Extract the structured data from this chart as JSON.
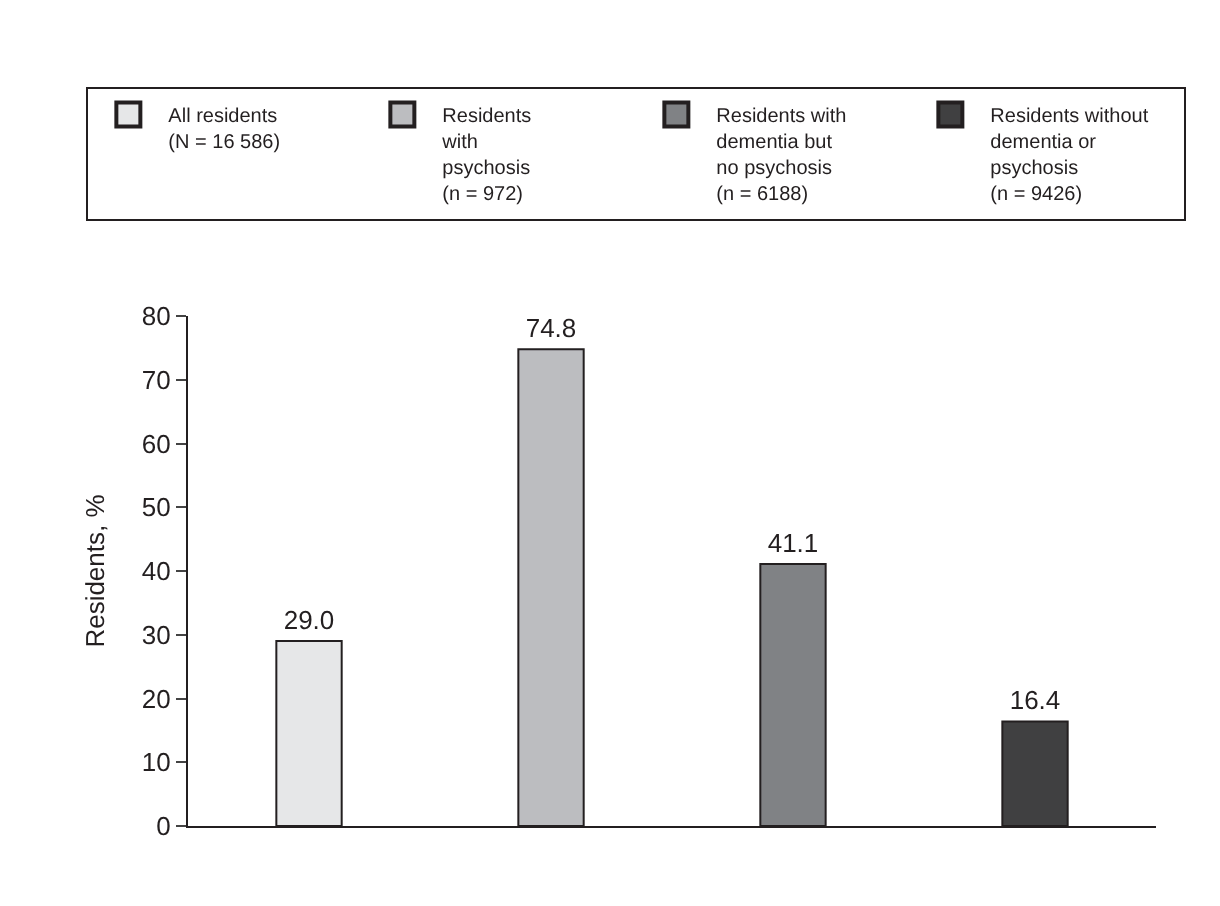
{
  "chart_data": {
    "type": "bar",
    "ylabel": "Residents, %",
    "categories": [
      null,
      null,
      null,
      null
    ],
    "series": [
      {
        "name": "All residents\n(N = 16 586)",
        "color": "#e6e7e8",
        "values": [
          29.0,
          null,
          null,
          null
        ],
        "value_labels": [
          "29.0",
          null,
          null,
          null
        ]
      },
      {
        "name": "Residents\nwith\npsychosis\n(n = 972)",
        "color": "#bcbdc0",
        "values": [
          null,
          74.8,
          null,
          null
        ],
        "value_labels": [
          null,
          "74.8",
          null,
          null
        ]
      },
      {
        "name": "Residents with\ndementia but\nno psychosis\n(n = 6188)",
        "color": "#808285",
        "values": [
          null,
          null,
          41.1,
          null
        ],
        "value_labels": [
          null,
          null,
          "41.1",
          null
        ]
      },
      {
        "name": "Residents without\ndementia or\npsychosis\n(n = 9426)",
        "color": "#404041",
        "values": [
          null,
          null,
          null,
          16.4
        ],
        "value_labels": [
          null,
          null,
          null,
          "16.4"
        ]
      }
    ],
    "ylim": [
      0,
      80
    ],
    "yticks": [
      0,
      10,
      20,
      30,
      40,
      50,
      60,
      70,
      80
    ],
    "legend": "top"
  }
}
